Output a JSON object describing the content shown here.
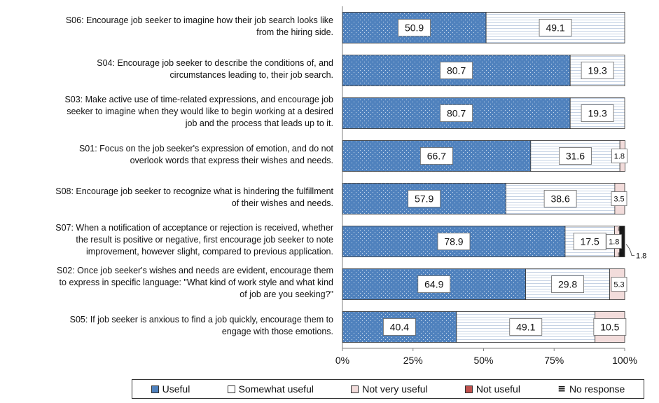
{
  "chart_data": {
    "type": "bar",
    "orientation": "horizontal",
    "stacked": "percent",
    "categories": [
      "S06: Encourage job seeker to imagine how their job search looks like from the hiring side.",
      "S04: Encourage job seeker to describe the conditions of, and circumstances leading to, their job search.",
      "S03: Make active use of time-related expressions, and encourage job seeker to imagine when they would like to begin working at a desired job and the process that leads up to it.",
      "S01: Focus on the job seeker's expression of emotion, and do not overlook words that express their wishes and needs.",
      "S08: Encourage job seeker to recognize what is hindering the fulfillment of their wishes and needs.",
      "S07: When a notification of acceptance or rejection is received, whether the result is positive or negative, first encourage job seeker to note improvement, however slight, compared to previous application.",
      "S02: Once job seeker's wishes and needs are evident, encourage them to express in specific language: \"What kind of work style and what kind of job are you seeking?\"",
      "S05: If job seeker is anxious to find a job quickly, encourage them to engage with those emotions."
    ],
    "category_lines": [
      [
        "S06: Encourage job seeker to imagine how their job search looks like",
        "from the hiring side."
      ],
      [
        "S04: Encourage job seeker to describe the conditions of, and",
        "circumstances leading to, their job search."
      ],
      [
        "S03: Make active use of time-related expressions, and encourage job",
        "seeker to imagine when they would like to begin working at a desired",
        "job and the process that leads up to it."
      ],
      [
        "S01: Focus on the job seeker's expression of emotion, and do not",
        "overlook words that express their wishes and needs."
      ],
      [
        "S08: Encourage job seeker to recognize what is hindering the fulfillment",
        "of their wishes and needs."
      ],
      [
        "S07: When a notification of acceptance or rejection is received, whether",
        "the result is positive or negative, first encourage job seeker to note",
        "improvement, however slight, compared to previous application."
      ],
      [
        "S02: Once job seeker's wishes and needs are evident, encourage them",
        "to express in specific language: \"What kind of work style and what kind",
        "of job are you seeking?\""
      ],
      [
        "S05: If job seeker is anxious to find a job quickly, encourage them to",
        "engage with those emotions."
      ]
    ],
    "series": [
      {
        "name": "Useful",
        "color": "#4f81bd",
        "values": [
          50.9,
          80.7,
          80.7,
          66.7,
          57.9,
          78.9,
          64.9,
          40.4
        ],
        "labels": [
          "50.9",
          "80.7",
          "80.7",
          "66.7",
          "57.9",
          "78.9",
          "64.9",
          "40.4"
        ]
      },
      {
        "name": "Somewhat useful",
        "color": "#ffffff",
        "values": [
          49.1,
          19.3,
          19.3,
          31.6,
          38.6,
          17.5,
          29.8,
          49.1
        ],
        "labels": [
          "49.1",
          "19.3",
          "19.3",
          "31.6",
          "38.6",
          "17.5",
          "29.8",
          "49.1"
        ]
      },
      {
        "name": "Not very useful",
        "color": "#f2dcdb",
        "values": [
          0,
          0,
          0,
          1.8,
          3.5,
          1.8,
          5.3,
          10.5
        ],
        "labels": [
          "",
          "",
          "",
          "1.8",
          "3.5",
          "1.8",
          "5.3",
          "10.5"
        ]
      },
      {
        "name": "Not useful",
        "color": "#c0504d",
        "values": [
          0,
          0,
          0,
          0,
          0,
          0,
          0,
          0
        ],
        "labels": [
          "",
          "",
          "",
          "",
          "",
          "",
          "",
          ""
        ]
      },
      {
        "name": "No response",
        "color": "#1a1a1a",
        "values": [
          0,
          0,
          0,
          0,
          0,
          1.8,
          0,
          0
        ],
        "labels": [
          "",
          "",
          "",
          "",
          "",
          "",
          "",
          ""
        ]
      }
    ],
    "annotations": [
      {
        "category_index": 5,
        "series": "No response",
        "text": "1.8"
      }
    ],
    "xlim": [
      0,
      100
    ],
    "x_ticks": [
      "0%",
      "25%",
      "50%",
      "75%",
      "100%"
    ],
    "grid": false,
    "legend_position": "bottom"
  }
}
